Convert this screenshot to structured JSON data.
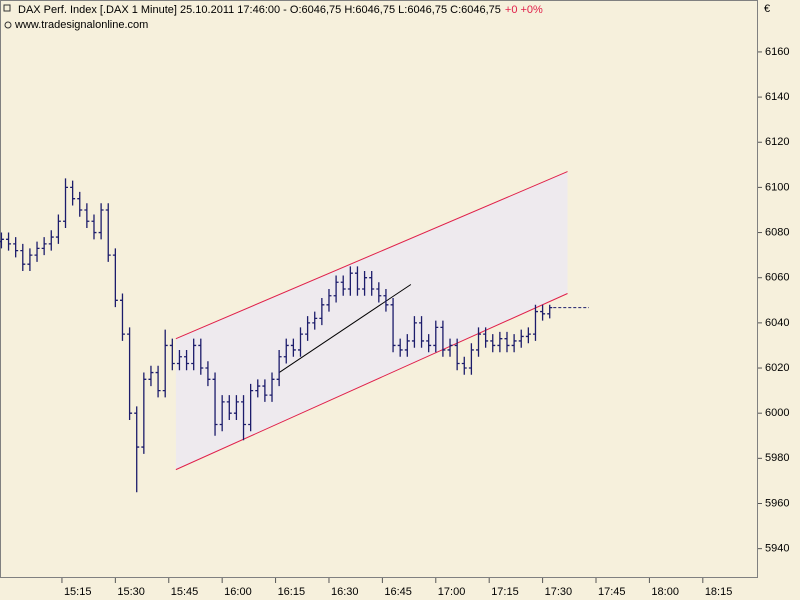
{
  "chart_data": {
    "type": "ohlc",
    "title": "DAX Perf. Index [.DAX  1 Minute] 25.10.2011 17:46:00 - O:6046,75 H:6046,75 L:6046,75 C:6046,75",
    "change": "+0 +0%",
    "source": "www.tradesignalonline.com",
    "y_unit": "€",
    "color": "#1c1c6b",
    "channel_color": "#e0204a",
    "channel_fill": "#eeeaee",
    "trend_color": "#000000",
    "x": [
      898,
      900,
      902,
      904,
      906,
      908,
      910,
      912,
      914,
      916,
      918,
      920,
      922,
      924,
      926,
      928,
      930,
      932,
      934,
      936,
      938,
      940,
      942,
      944,
      946,
      948,
      950,
      952,
      954,
      956,
      958,
      960,
      962,
      964,
      966,
      968,
      970,
      972,
      974,
      976,
      978,
      980,
      982,
      984,
      986,
      988,
      990,
      992,
      994,
      996,
      998,
      1000,
      1002,
      1004,
      1006,
      1008,
      1010,
      1012,
      1014,
      1016,
      1018,
      1020,
      1022,
      1024,
      1026,
      1028,
      1030,
      1032,
      1034,
      1036,
      1038,
      1040,
      1042,
      1044,
      1046,
      1048,
      1050,
      1052
    ],
    "open": [
      6076,
      6077,
      6075,
      6072,
      6066,
      6070,
      6073,
      6075,
      6078,
      6085,
      6100,
      6095,
      6090,
      6085,
      6080,
      6090,
      6070,
      6050,
      6035,
      6000,
      5985,
      6015,
      6018,
      6010,
      6030,
      6022,
      6025,
      6022,
      6030,
      6020,
      6015,
      5995,
      6005,
      6000,
      6005,
      5995,
      6010,
      6012,
      6008,
      6015,
      6025,
      6030,
      6028,
      6035,
      6040,
      6042,
      6048,
      6052,
      6058,
      6055,
      6062,
      6055,
      6060,
      6055,
      6052,
      6048,
      6030,
      6028,
      6032,
      6040,
      6032,
      6030,
      6038,
      6028,
      6030,
      6022,
      6020,
      6028,
      6035,
      6032,
      6030,
      6033,
      6030,
      6032,
      6034,
      6035,
      6045,
      6044
    ],
    "high": [
      6080,
      6080,
      6078,
      6075,
      6073,
      6076,
      6078,
      6081,
      6088,
      6104,
      6103,
      6098,
      6093,
      6088,
      6093,
      6093,
      6073,
      6053,
      6038,
      6003,
      6018,
      6021,
      6021,
      6037,
      6033,
      6028,
      6028,
      6033,
      6033,
      6023,
      6018,
      6008,
      6008,
      6008,
      6008,
      6013,
      6015,
      6015,
      6018,
      6028,
      6033,
      6033,
      6038,
      6043,
      6045,
      6051,
      6055,
      6061,
      6061,
      6065,
      6065,
      6063,
      6063,
      6058,
      6055,
      6051,
      6033,
      6035,
      6043,
      6043,
      6035,
      6041,
      6041,
      6033,
      6033,
      6025,
      6031,
      6038,
      6038,
      6035,
      6036,
      6036,
      6035,
      6037,
      6038,
      6048,
      6048,
      6048
    ],
    "low": [
      6073,
      6072,
      6069,
      6063,
      6063,
      6067,
      6070,
      6072,
      6075,
      6082,
      6092,
      6087,
      6082,
      6077,
      6077,
      6067,
      6047,
      6032,
      5997,
      5965,
      5982,
      6012,
      6007,
      6007,
      6019,
      6019,
      6019,
      6019,
      6017,
      6012,
      5990,
      5992,
      5997,
      5997,
      5988,
      5992,
      6007,
      6005,
      6005,
      6012,
      6022,
      6025,
      6025,
      6032,
      6037,
      6039,
      6045,
      6049,
      6052,
      6052,
      6052,
      6052,
      6052,
      6049,
      6045,
      6027,
      6025,
      6025,
      6029,
      6029,
      6027,
      6027,
      6025,
      6025,
      6019,
      6017,
      6017,
      6025,
      6029,
      6027,
      6027,
      6027,
      6027,
      6029,
      6031,
      6032,
      6041,
      6042
    ],
    "close": [
      6077,
      6075,
      6072,
      6066,
      6070,
      6073,
      6075,
      6078,
      6085,
      6100,
      6095,
      6090,
      6085,
      6080,
      6090,
      6070,
      6050,
      6035,
      6000,
      5985,
      6015,
      6018,
      6010,
      6030,
      6022,
      6025,
      6022,
      6030,
      6020,
      6015,
      5995,
      6005,
      6000,
      6005,
      5995,
      6010,
      6012,
      6008,
      6015,
      6025,
      6030,
      6028,
      6035,
      6040,
      6042,
      6048,
      6052,
      6058,
      6055,
      6062,
      6055,
      6060,
      6055,
      6052,
      6048,
      6030,
      6028,
      6032,
      6040,
      6032,
      6030,
      6038,
      6028,
      6030,
      6022,
      6020,
      6028,
      6035,
      6032,
      6030,
      6033,
      6030,
      6032,
      6034,
      6035,
      6045,
      6044,
      6046.75
    ],
    "last_price": {
      "x": [
        1053,
        1063
      ],
      "value": 6046.75
    },
    "channel_upper": {
      "x": [
        947,
        1057
      ],
      "y": [
        6033,
        6107
      ]
    },
    "channel_lower": {
      "x": [
        947,
        1057
      ],
      "y": [
        5975,
        6053
      ]
    },
    "trendline": {
      "x": [
        976,
        1013
      ],
      "y": [
        6018,
        6057
      ]
    },
    "xlim": [
      897.6,
      1110.5
    ],
    "ylim": [
      5927,
      6183
    ],
    "yticks": [
      5940,
      5960,
      5980,
      6000,
      6020,
      6040,
      6060,
      6080,
      6100,
      6120,
      6140,
      6160
    ],
    "xticks": [
      {
        "value": 915,
        "label": "15:15"
      },
      {
        "value": 930,
        "label": "15:30"
      },
      {
        "value": 945,
        "label": "15:45"
      },
      {
        "value": 960,
        "label": "16:00"
      },
      {
        "value": 975,
        "label": "16:15"
      },
      {
        "value": 990,
        "label": "16:30"
      },
      {
        "value": 1005,
        "label": "16:45"
      },
      {
        "value": 1020,
        "label": "17:00"
      },
      {
        "value": 1035,
        "label": "17:15"
      },
      {
        "value": 1050,
        "label": "17:30"
      },
      {
        "value": 1065,
        "label": "17:45"
      },
      {
        "value": 1080,
        "label": "18:00"
      },
      {
        "value": 1095,
        "label": "18:15"
      }
    ]
  }
}
